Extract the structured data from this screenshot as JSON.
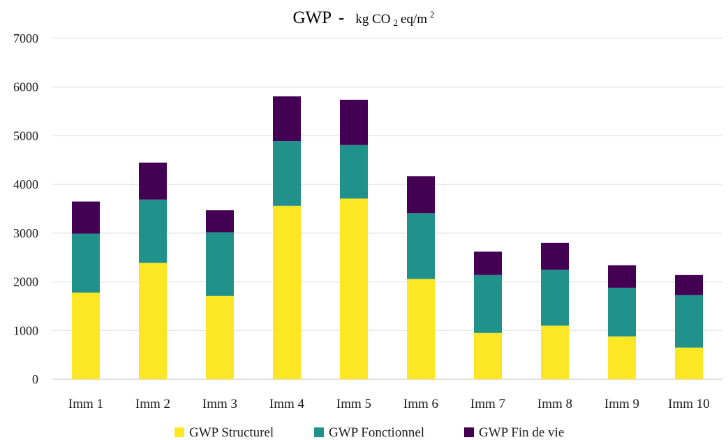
{
  "chart_data": {
    "type": "bar",
    "stacked": true,
    "title": {
      "main": "GWP",
      "separator": "-",
      "unit_prefix": "kg CO",
      "unit_sub": "2",
      "unit_mid": " eq/m",
      "unit_sup": "2"
    },
    "categories": [
      "Imm 1",
      "Imm 2",
      "Imm 3",
      "Imm 4",
      "Imm 5",
      "Imm 6",
      "Imm 7",
      "Imm 8",
      "Imm 9",
      "Imm 10"
    ],
    "series": [
      {
        "name": "GWP Structurel",
        "color": "#fde725",
        "values": [
          1780,
          2390,
          1710,
          3560,
          3710,
          2060,
          950,
          1100,
          880,
          650
        ]
      },
      {
        "name": "GWP Fonctionnel",
        "color": "#21918c",
        "values": [
          1210,
          1300,
          1310,
          1330,
          1100,
          1350,
          1190,
          1150,
          1000,
          1080
        ]
      },
      {
        "name": "GWP Fin de vie",
        "color": "#440154",
        "values": [
          660,
          760,
          450,
          920,
          930,
          760,
          480,
          550,
          460,
          410
        ]
      }
    ],
    "ylim": [
      0,
      7000
    ],
    "yticks": [
      0,
      1000,
      2000,
      3000,
      4000,
      5000,
      6000,
      7000
    ],
    "grid": true,
    "legend": "bottom-center"
  }
}
